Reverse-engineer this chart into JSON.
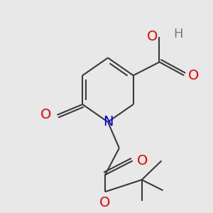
{
  "bg_color": "#e8e8e8",
  "bond_color": "#3a3a3a",
  "N_color": "#0000ee",
  "O_color": "#ee0000",
  "H_color": "#708080",
  "lw": 1.5,
  "figsize": [
    3.0,
    3.0
  ],
  "dpi": 100,
  "xlim": [
    0,
    300
  ],
  "ylim": [
    0,
    300
  ],
  "font_size": 14
}
